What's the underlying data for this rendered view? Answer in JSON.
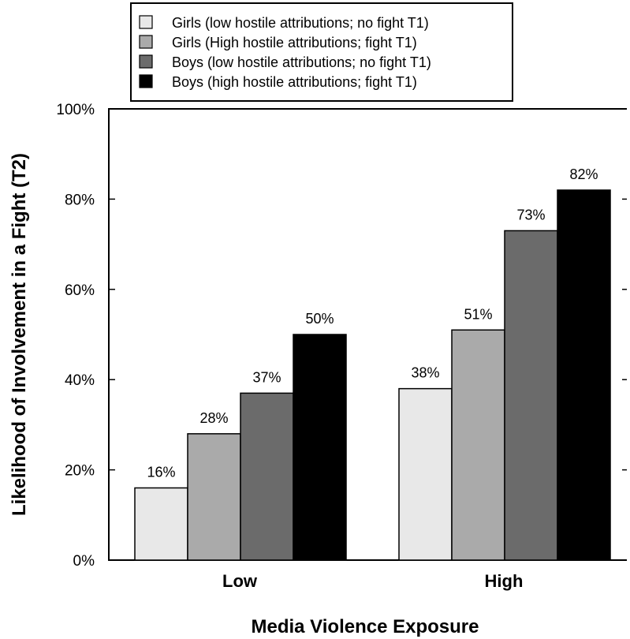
{
  "chart_data": {
    "type": "bar",
    "categories": [
      "Low",
      "High"
    ],
    "series": [
      {
        "name": "Girls (low hostile attributions; no fight T1)",
        "values": [
          16,
          38
        ],
        "color": "#e8e8e8"
      },
      {
        "name": "Girls (High hostile attributions; fight T1)",
        "values": [
          28,
          51
        ],
        "color": "#aaaaaa"
      },
      {
        "name": "Boys (low hostile attributions; no fight T1)",
        "values": [
          37,
          73
        ],
        "color": "#6b6b6b"
      },
      {
        "name": "Boys (high hostile attributions; fight T1)",
        "values": [
          50,
          82
        ],
        "color": "#000000"
      }
    ],
    "data_labels": [
      [
        "16%",
        "38%"
      ],
      [
        "28%",
        "51%"
      ],
      [
        "37%",
        "73%"
      ],
      [
        "50%",
        "82%"
      ]
    ],
    "xlabel": "Media Violence Exposure",
    "ylabel": "Likelihood of Involvement in a Fight (T2)",
    "ylim": [
      0,
      100
    ],
    "yticks": [
      "0%",
      "20%",
      "40%",
      "60%",
      "80%",
      "100%"
    ],
    "grid": false,
    "legend_position": "top"
  }
}
